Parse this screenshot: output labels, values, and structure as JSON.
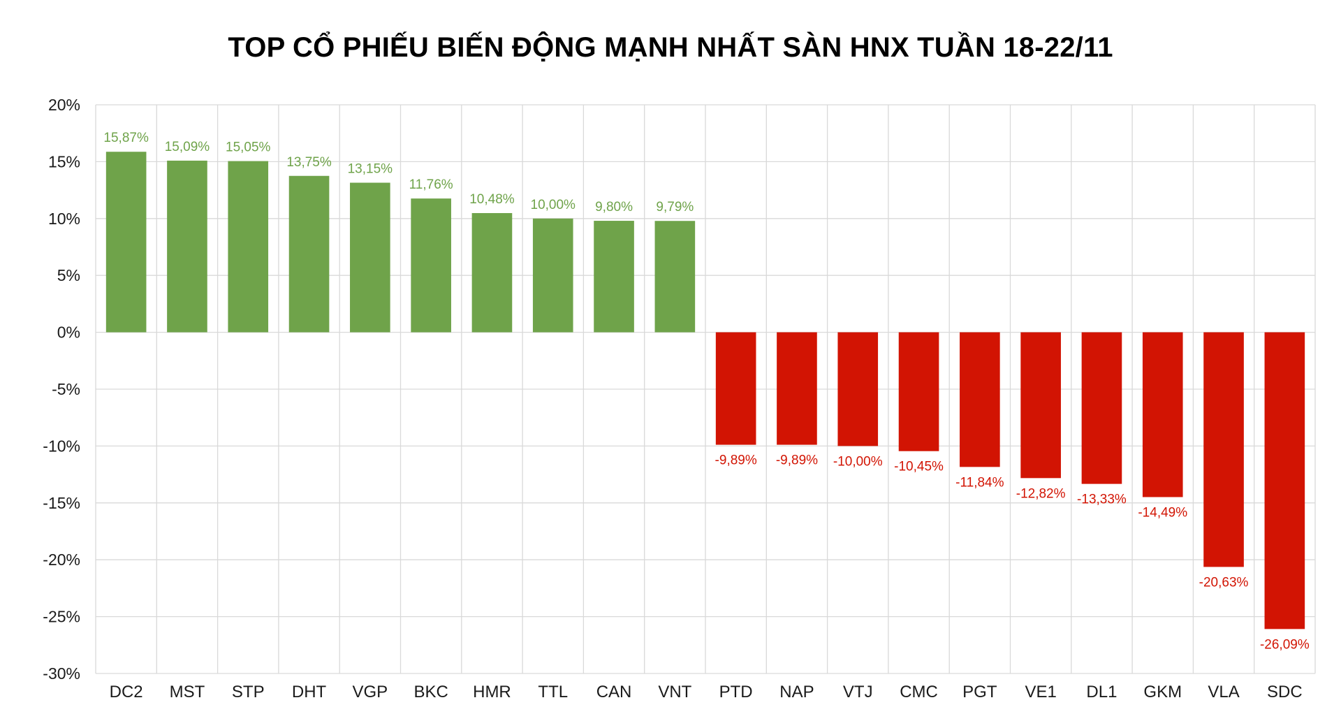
{
  "chart_data": {
    "type": "bar",
    "title": "TOP CỔ PHIẾU BIẾN ĐỘNG MẠNH NHẤT SÀN HNX TUẦN 18-22/11",
    "xlabel": "",
    "ylabel": "",
    "ylim": [
      -30,
      20
    ],
    "yticks": [
      20,
      15,
      10,
      5,
      0,
      -5,
      -10,
      -15,
      -20,
      -25,
      -30
    ],
    "ytick_labels": [
      "20%",
      "15%",
      "10%",
      "5%",
      "0%",
      "-5%",
      "-10%",
      "-15%",
      "-20%",
      "-25%",
      "-30%"
    ],
    "grid": true,
    "legend": "none",
    "categories": [
      "DC2",
      "MST",
      "STP",
      "DHT",
      "VGP",
      "BKC",
      "HMR",
      "TTL",
      "CAN",
      "VNT",
      "PTD",
      "NAP",
      "VTJ",
      "CMC",
      "PGT",
      "VE1",
      "DL1",
      "GKM",
      "VLA",
      "SDC"
    ],
    "values": [
      15.87,
      15.09,
      15.05,
      13.75,
      13.15,
      11.76,
      10.48,
      10.0,
      9.8,
      9.79,
      -9.89,
      -9.89,
      -10.0,
      -10.45,
      -11.84,
      -12.82,
      -13.33,
      -14.49,
      -20.63,
      -26.09
    ],
    "data_labels": [
      "15,87%",
      "15,09%",
      "15,05%",
      "13,75%",
      "13,15%",
      "11,76%",
      "10,48%",
      "10,00%",
      "9,80%",
      "9,79%",
      "-9,89%",
      "-9,89%",
      "-10,00%",
      "-10,45%",
      "-11,84%",
      "-12,82%",
      "-13,33%",
      "-14,49%",
      "-20,63%",
      "-26,09%"
    ],
    "colors": {
      "positive": "#6fa34a",
      "negative": "#d21403",
      "positive_label": "#6fa34a",
      "negative_label": "#d21403",
      "grid": "#d9d9d9"
    }
  }
}
